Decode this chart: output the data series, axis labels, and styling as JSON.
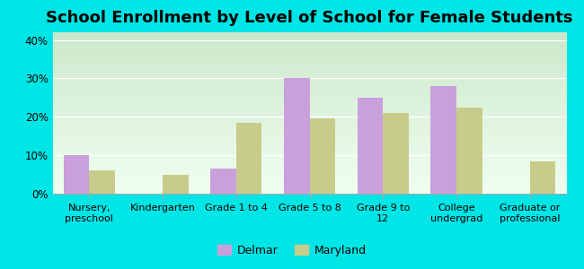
{
  "title": "School Enrollment by Level of School for Female Students",
  "categories": [
    "Nursery,\npreschool",
    "Kindergarten",
    "Grade 1 to 4",
    "Grade 5 to 8",
    "Grade 9 to\n12",
    "College\nundergrad",
    "Graduate or\nprofessional"
  ],
  "delmar": [
    10,
    0,
    6.5,
    30,
    25,
    28,
    0
  ],
  "maryland": [
    6,
    5,
    18.5,
    19.5,
    21,
    22.5,
    8.5
  ],
  "delmar_color": "#c9a0dc",
  "maryland_color": "#c8cc8a",
  "background_color": "#00e5e5",
  "grad_top": "#cce8cc",
  "grad_bottom": "#f0fff0",
  "ylim": [
    0,
    42
  ],
  "yticks": [
    0,
    10,
    20,
    30,
    40
  ],
  "ytick_labels": [
    "0%",
    "10%",
    "20%",
    "30%",
    "40%"
  ],
  "title_fontsize": 13,
  "legend_labels": [
    "Delmar",
    "Maryland"
  ],
  "bar_width": 0.35
}
